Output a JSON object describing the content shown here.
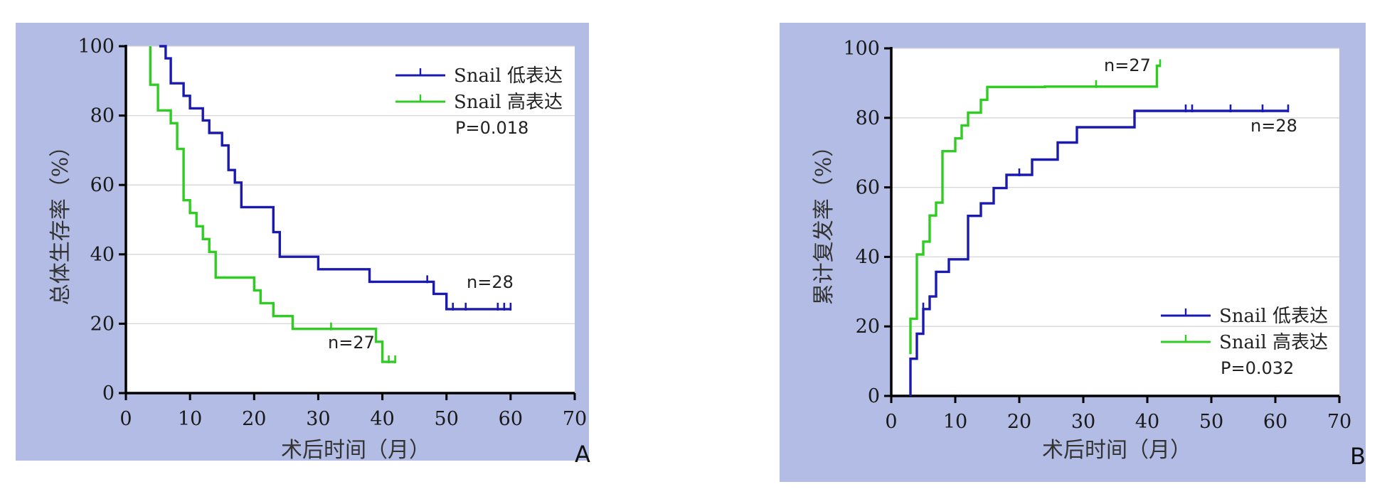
{
  "chart_data": [
    {
      "panel": "A",
      "type": "line",
      "step": true,
      "xlabel": "术后时间（月）",
      "ylabel": "总体生存率（%）",
      "xlim": [
        0,
        70
      ],
      "ylim": [
        0,
        100
      ],
      "xticks": [
        0,
        10,
        20,
        30,
        40,
        50,
        60,
        70
      ],
      "yticks": [
        0,
        20,
        40,
        60,
        80,
        100
      ],
      "grid": "horizontal",
      "legend_position": "top-right",
      "p_value": "P=0.018",
      "series": [
        {
          "name": "Snail 低表达",
          "color": "#1a1ab0",
          "n_label": "n=28",
          "x": [
            5.2,
            6.2,
            6.2,
            7,
            7,
            9,
            9,
            10,
            10,
            12,
            12,
            13,
            13,
            15,
            15,
            16,
            16,
            17,
            17,
            18,
            18,
            23,
            23,
            24,
            24,
            30,
            30,
            38,
            38,
            48,
            48,
            50,
            50,
            60
          ],
          "y": [
            100,
            100,
            96.5,
            96.5,
            89.3,
            89.3,
            85.7,
            85.7,
            82.1,
            82.1,
            78.6,
            78.6,
            75.0,
            75.0,
            71.4,
            71.4,
            64.3,
            64.3,
            60.7,
            60.7,
            53.6,
            53.6,
            46.4,
            46.4,
            39.3,
            39.3,
            35.7,
            35.7,
            32.1,
            32.1,
            28.6,
            28.6,
            24.2,
            24.2
          ],
          "censored": [
            [
              47,
              32.1
            ],
            [
              51,
              24.2
            ],
            [
              53,
              24.2
            ],
            [
              58,
              24.2
            ],
            [
              59,
              24.2
            ],
            [
              60,
              24.2
            ]
          ]
        },
        {
          "name": "Snail 高表达",
          "color": "#2fcc22",
          "n_label": "n=27",
          "x": [
            3.8,
            3.8,
            5,
            5,
            7,
            7,
            8,
            8,
            9,
            9,
            10,
            10,
            11,
            11,
            12,
            12,
            13,
            13,
            14,
            14,
            20,
            20,
            21,
            21,
            23,
            23,
            26,
            26,
            39,
            39,
            40,
            40,
            42
          ],
          "y": [
            100,
            88.9,
            88.9,
            81.5,
            81.5,
            77.8,
            77.8,
            70.4,
            70.4,
            55.6,
            55.6,
            51.9,
            51.9,
            48.1,
            48.1,
            44.4,
            44.4,
            40.7,
            40.7,
            33.3,
            33.3,
            29.6,
            29.6,
            25.9,
            25.9,
            22.2,
            22.2,
            18.5,
            18.5,
            14.8,
            14.8,
            9.0,
            9.0
          ],
          "censored": [
            [
              32,
              18.5
            ],
            [
              41,
              9.0
            ],
            [
              42,
              9.0
            ]
          ]
        }
      ]
    },
    {
      "panel": "B",
      "type": "line",
      "step": true,
      "xlabel": "术后时间（月）",
      "ylabel": "累计复发率（%）",
      "xlim": [
        0,
        70
      ],
      "ylim": [
        0,
        100
      ],
      "xticks": [
        0,
        10,
        20,
        30,
        40,
        50,
        60,
        70
      ],
      "yticks": [
        0,
        20,
        40,
        60,
        80,
        100
      ],
      "grid": "horizontal",
      "legend_position": "bottom-right",
      "p_value": "P=0.032",
      "series": [
        {
          "name": "Snail 低表达",
          "color": "#1a1ab0",
          "n_label": "n=28",
          "x": [
            3,
            3,
            4,
            4,
            5,
            5,
            6,
            6,
            7,
            7,
            9,
            9,
            12,
            12,
            14,
            14,
            16,
            16,
            18,
            18,
            22,
            22,
            26,
            26,
            29,
            29,
            38,
            38,
            62
          ],
          "y": [
            0,
            10.7,
            10.7,
            17.9,
            17.9,
            25.0,
            25.0,
            28.6,
            28.6,
            35.7,
            35.7,
            39.3,
            39.3,
            51.8,
            51.8,
            55.4,
            55.4,
            59.8,
            59.8,
            63.6,
            63.6,
            68.0,
            68.0,
            72.9,
            72.9,
            77.3,
            77.3,
            82.0,
            82.0
          ],
          "censored": [
            [
              5,
              25.0
            ],
            [
              20,
              63.6
            ],
            [
              46,
              82.0
            ],
            [
              47,
              82.0
            ],
            [
              53,
              82.0
            ],
            [
              58,
              82.0
            ],
            [
              62,
              82.0
            ]
          ]
        },
        {
          "name": "Snail 高表达",
          "color": "#2fcc22",
          "n_label": "n=27",
          "x": [
            3,
            3,
            4,
            4,
            5,
            5,
            6,
            6,
            7,
            7,
            8,
            8,
            10,
            10,
            11,
            11,
            12,
            12,
            14,
            14,
            15,
            15,
            24,
            24,
            41.5,
            41.5,
            42
          ],
          "y": [
            12.0,
            22.2,
            22.2,
            40.7,
            40.7,
            44.4,
            44.4,
            51.9,
            51.9,
            55.6,
            55.6,
            70.4,
            70.4,
            74.1,
            74.1,
            77.8,
            77.8,
            81.5,
            81.5,
            85.2,
            85.2,
            88.9,
            88.9,
            89.0,
            89.0,
            95.0,
            95.0
          ],
          "censored": [
            [
              32,
              89.0
            ],
            [
              42,
              95.0
            ]
          ]
        }
      ]
    }
  ],
  "panels": [
    {
      "letter": "A",
      "p_value": "P=0.018",
      "n_low": "n=28",
      "n_high": "n=27",
      "legend_low": "Snail 低表达",
      "legend_high": "Snail 高表达"
    },
    {
      "letter": "B",
      "p_value": "P=0.032",
      "n_low": "n=28",
      "n_high": "n=27",
      "legend_low": "Snail 低表达",
      "legend_high": "Snail 高表达"
    }
  ]
}
